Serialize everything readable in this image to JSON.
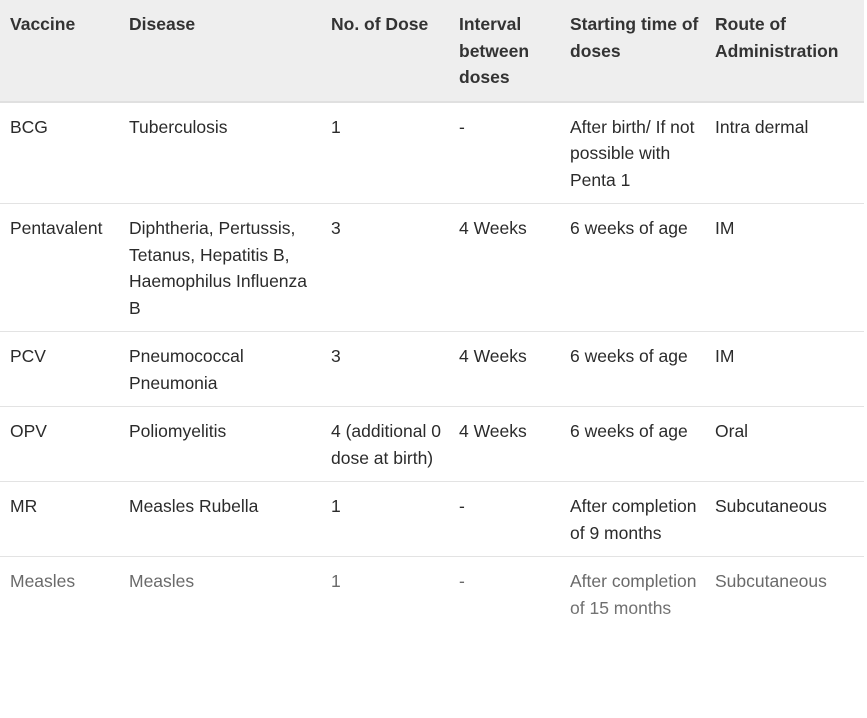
{
  "table": {
    "headers": [
      "Vaccine",
      "Disease",
      "No. of Dose",
      "Interval between doses",
      "Starting time of doses",
      "Route of Administration"
    ],
    "rows": [
      [
        "BCG",
        "Tuberculosis",
        "1",
        "-",
        "After birth/ If not possible with Penta 1",
        "Intra dermal"
      ],
      [
        "Pentavalent",
        "Diphtheria, Pertussis, Tetanus, Hepatitis B, Haemophilus Influenza B",
        "3",
        "4 Weeks",
        "6 weeks of age",
        "IM"
      ],
      [
        "PCV",
        "Pneumococcal Pneumonia",
        "3",
        "4 Weeks",
        "6 weeks of age",
        "IM"
      ],
      [
        "OPV",
        "Poliomyelitis",
        "4 (additional 0 dose at birth)",
        "4 Weeks",
        "6 weeks of age",
        "Oral"
      ],
      [
        "MR",
        "Measles Rubella",
        "1",
        "-",
        "After completion of 9 months",
        "Subcutaneous"
      ],
      [
        "Measles",
        "Measles",
        "1",
        "-",
        "After completion of 15 months",
        "Subcutaneous"
      ]
    ]
  }
}
